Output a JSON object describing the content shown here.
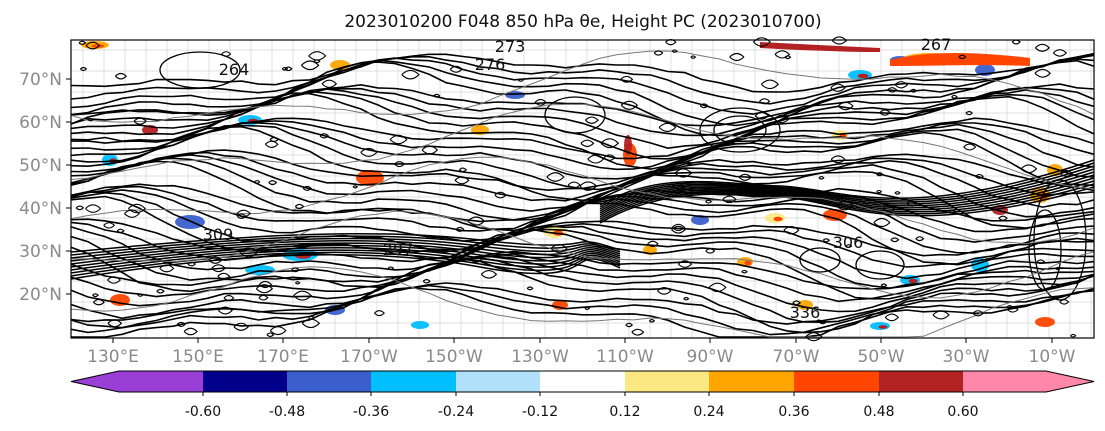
{
  "title": "2023010200 F048 850 hPa θe, Height PC (2023010700)",
  "map": {
    "lat_ticks": [
      "20°N",
      "30°N",
      "40°N",
      "50°N",
      "60°N",
      "70°N"
    ],
    "lon_ticks": [
      "130°E",
      "150°E",
      "170°E",
      "170°W",
      "150°W",
      "130°W",
      "110°W",
      "90°W",
      "70°W",
      "50°W",
      "30°W",
      "10°W"
    ],
    "contour_labels": [
      "273",
      "276",
      "267",
      "264",
      "297",
      "309",
      "306",
      "336"
    ]
  },
  "colorbar": {
    "levels": [
      "-0.60",
      "-0.48",
      "-0.36",
      "-0.24",
      "-0.12",
      "0.12",
      "0.24",
      "0.36",
      "0.48",
      "0.60"
    ],
    "colors": [
      "#9a3fd6",
      "#00008b",
      "#3a5fcd",
      "#00bfff",
      "#b0e0fa",
      "#ffffff",
      "#fce883",
      "#ffa500",
      "#ff4500",
      "#b22222",
      "#ff88aa"
    ]
  }
}
